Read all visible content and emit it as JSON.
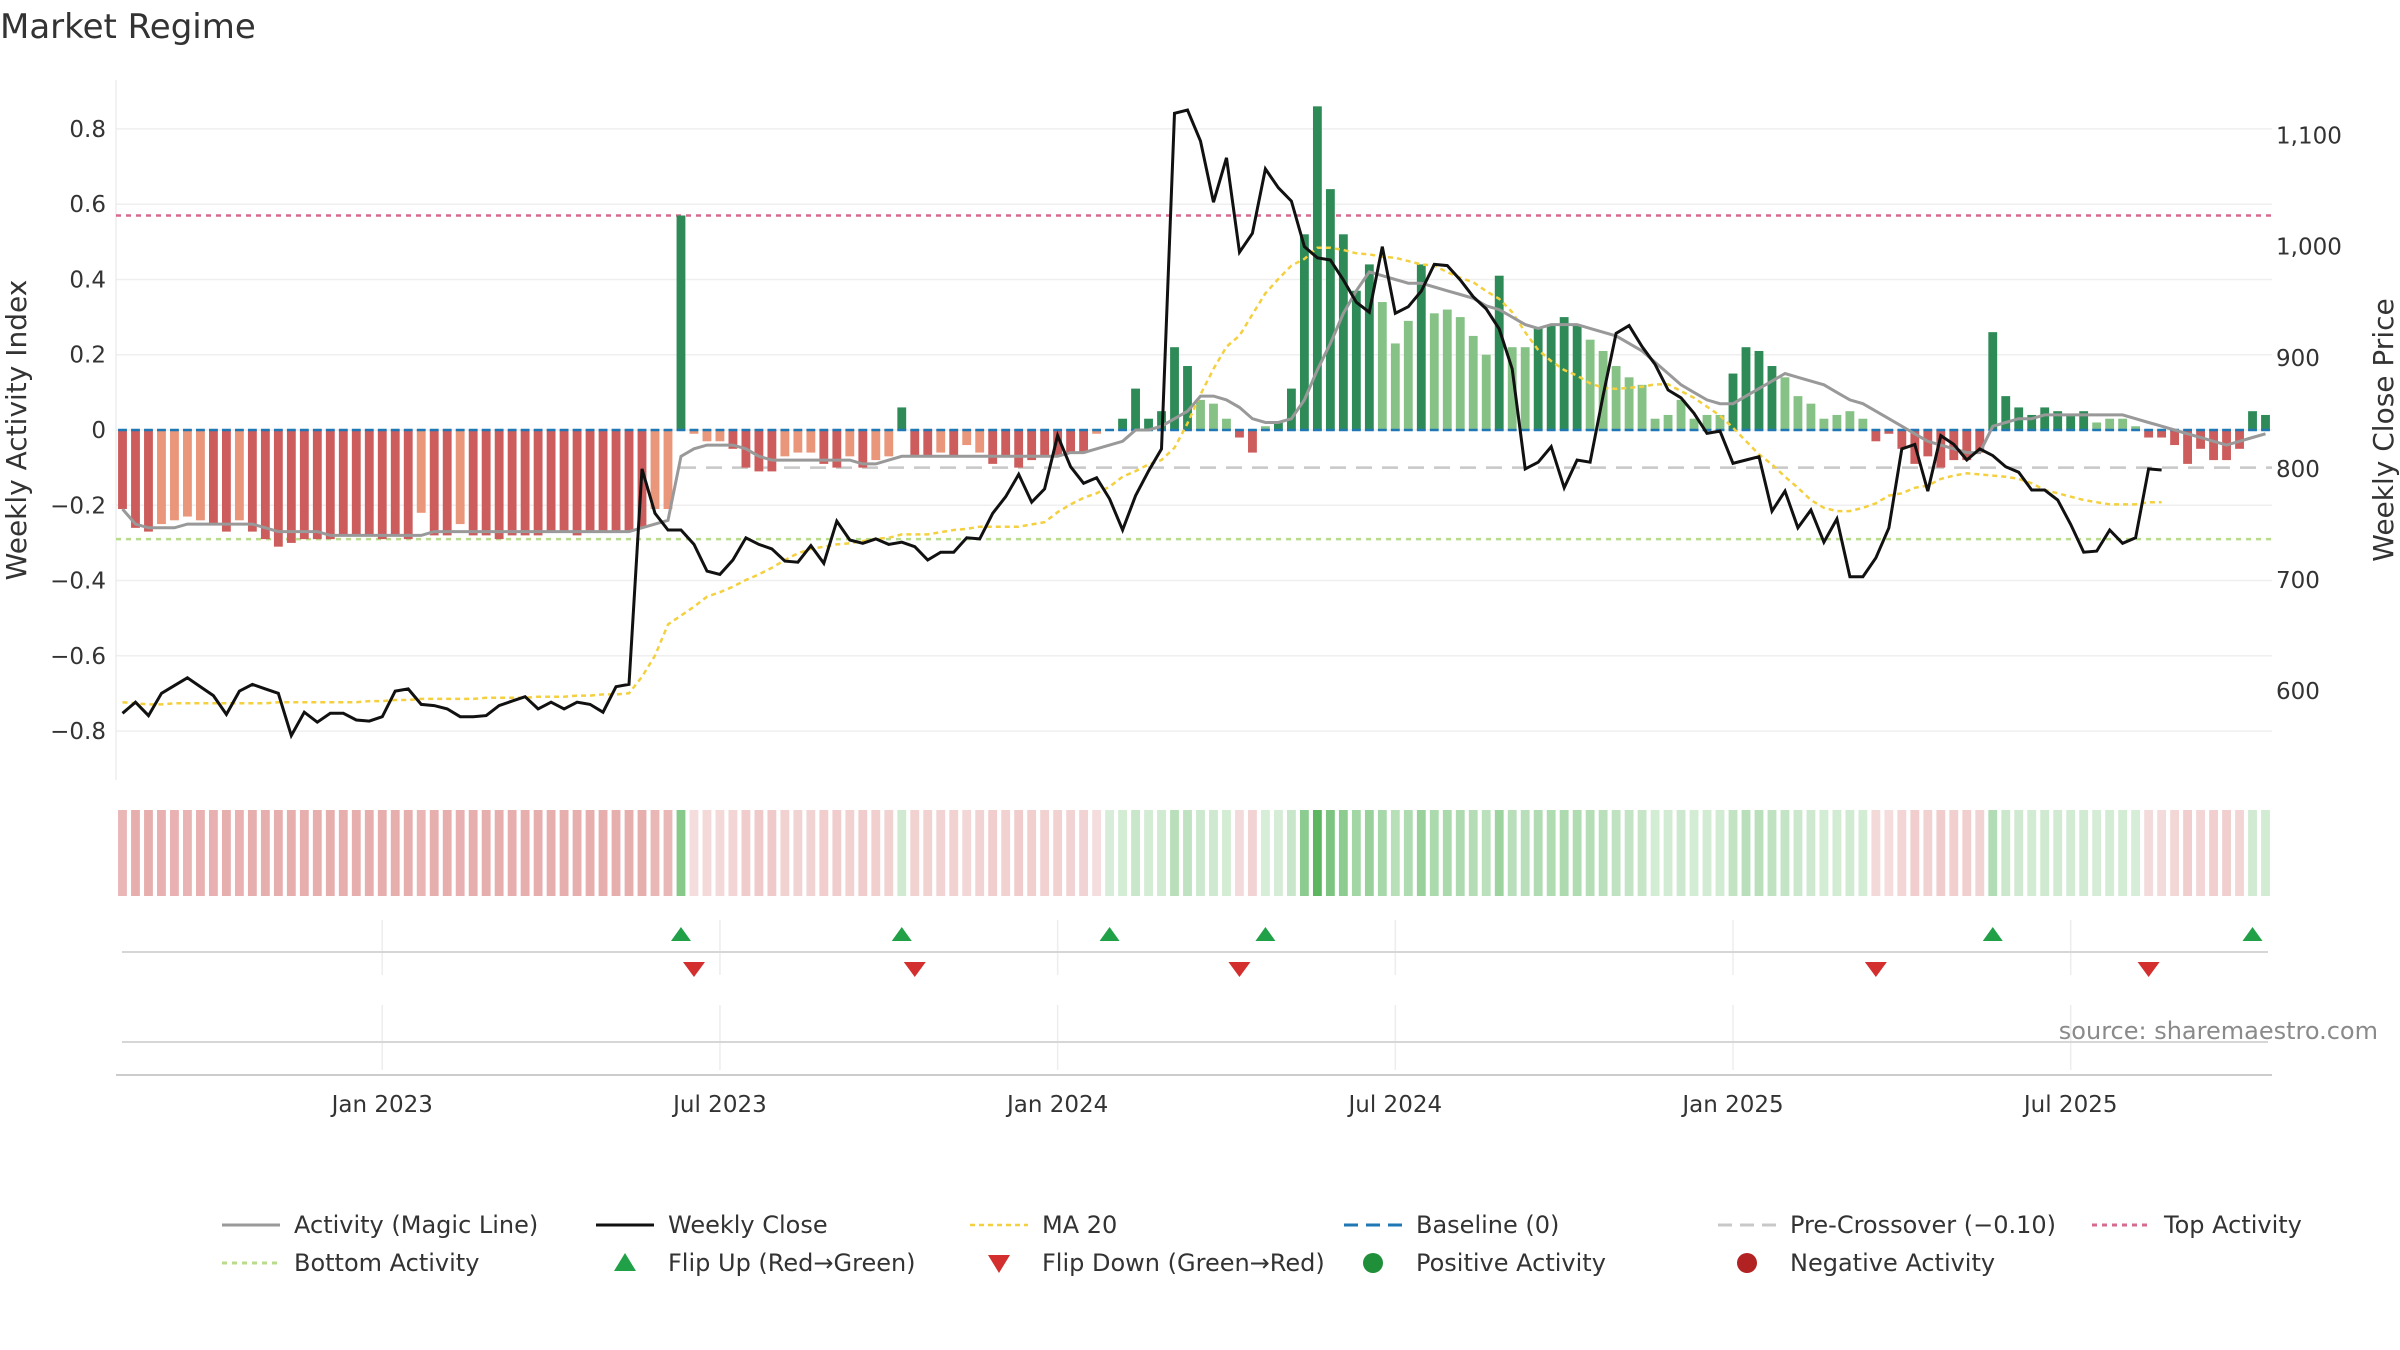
{
  "chart_data": {
    "type": "bar",
    "title": "Market Regime",
    "ylabel": "Weekly Activity Index",
    "y2label": "Weekly Close Price",
    "ylim": [
      -0.93,
      0.93
    ],
    "y2lim": [
      520,
      1150
    ],
    "yticks": [
      "0.8",
      "0.6",
      "0.4",
      "0.2",
      "0",
      "−0.2",
      "−0.4",
      "−0.6",
      "−0.8"
    ],
    "y2ticks": [
      "1,100",
      "1,000",
      "900",
      "800",
      "700",
      "600"
    ],
    "xticks": [
      "Jan 2023",
      "Jul 2023",
      "Jan 2024",
      "Jul 2024",
      "Jan 2025",
      "Jul 2025"
    ],
    "source": "source: sharemaestro.com",
    "reference_lines": {
      "top_activity": 0.57,
      "bottom_activity": -0.29,
      "pre_crossover": -0.1,
      "baseline": 0
    },
    "activity": [
      -0.21,
      -0.26,
      -0.27,
      -0.25,
      -0.24,
      -0.23,
      -0.24,
      -0.25,
      -0.27,
      -0.24,
      -0.27,
      -0.29,
      -0.31,
      -0.3,
      -0.29,
      -0.29,
      -0.29,
      -0.28,
      -0.28,
      -0.28,
      -0.29,
      -0.28,
      -0.29,
      -0.22,
      -0.28,
      -0.28,
      -0.25,
      -0.28,
      -0.28,
      -0.29,
      -0.28,
      -0.28,
      -0.28,
      -0.27,
      -0.27,
      -0.28,
      -0.27,
      -0.27,
      -0.27,
      -0.27,
      -0.26,
      -0.21,
      -0.21,
      0.57,
      -0.01,
      -0.03,
      -0.03,
      -0.05,
      -0.1,
      -0.11,
      -0.11,
      -0.07,
      -0.06,
      -0.06,
      -0.09,
      -0.1,
      -0.07,
      -0.1,
      -0.08,
      -0.07,
      0.06,
      -0.07,
      -0.07,
      -0.06,
      -0.07,
      -0.04,
      -0.06,
      -0.09,
      -0.07,
      -0.1,
      -0.08,
      -0.07,
      -0.07,
      -0.06,
      -0.06,
      -0.01,
      0.0,
      0.03,
      0.11,
      0.03,
      0.05,
      0.22,
      0.17,
      0.08,
      0.07,
      0.03,
      -0.02,
      -0.06,
      0.01,
      0.02,
      0.11,
      0.52,
      0.86,
      0.64,
      0.52,
      0.37,
      0.44,
      0.34,
      0.23,
      0.29,
      0.44,
      0.31,
      0.32,
      0.3,
      0.25,
      0.2,
      0.41,
      0.22,
      0.22,
      0.27,
      0.28,
      0.3,
      0.28,
      0.24,
      0.21,
      0.17,
      0.14,
      0.12,
      0.03,
      0.04,
      0.08,
      0.03,
      0.04,
      0.04,
      0.15,
      0.22,
      0.21,
      0.17,
      0.14,
      0.09,
      0.07,
      0.03,
      0.04,
      0.05,
      0.03,
      -0.03,
      -0.01,
      -0.05,
      -0.09,
      -0.07,
      -0.1,
      -0.08,
      -0.08,
      -0.06,
      0.26,
      0.09,
      0.06,
      0.04,
      0.06,
      0.05,
      0.04,
      0.05,
      0.02,
      0.03,
      0.03,
      0.01,
      -0.02,
      -0.02,
      -0.04,
      -0.09,
      -0.05,
      -0.08,
      -0.08,
      -0.05,
      0.05,
      0.04
    ],
    "magic_line": [
      -0.21,
      -0.25,
      -0.26,
      -0.26,
      -0.26,
      -0.25,
      -0.25,
      -0.25,
      -0.25,
      -0.25,
      -0.25,
      -0.26,
      -0.27,
      -0.27,
      -0.27,
      -0.27,
      -0.28,
      -0.28,
      -0.28,
      -0.28,
      -0.28,
      -0.28,
      -0.28,
      -0.28,
      -0.27,
      -0.27,
      -0.27,
      -0.27,
      -0.27,
      -0.27,
      -0.27,
      -0.27,
      -0.27,
      -0.27,
      -0.27,
      -0.27,
      -0.27,
      -0.27,
      -0.27,
      -0.27,
      -0.26,
      -0.25,
      -0.24,
      -0.07,
      -0.05,
      -0.04,
      -0.04,
      -0.04,
      -0.05,
      -0.07,
      -0.08,
      -0.08,
      -0.08,
      -0.08,
      -0.08,
      -0.08,
      -0.08,
      -0.09,
      -0.09,
      -0.08,
      -0.07,
      -0.07,
      -0.07,
      -0.07,
      -0.07,
      -0.07,
      -0.07,
      -0.07,
      -0.07,
      -0.07,
      -0.07,
      -0.07,
      -0.07,
      -0.06,
      -0.06,
      -0.05,
      -0.04,
      -0.03,
      0.0,
      0.0,
      0.01,
      0.03,
      0.05,
      0.09,
      0.09,
      0.08,
      0.06,
      0.03,
      0.02,
      0.02,
      0.03,
      0.08,
      0.16,
      0.23,
      0.31,
      0.37,
      0.42,
      0.41,
      0.4,
      0.39,
      0.39,
      0.38,
      0.37,
      0.36,
      0.35,
      0.33,
      0.32,
      0.3,
      0.28,
      0.27,
      0.28,
      0.28,
      0.28,
      0.27,
      0.26,
      0.25,
      0.23,
      0.21,
      0.18,
      0.15,
      0.12,
      0.1,
      0.08,
      0.07,
      0.07,
      0.09,
      0.11,
      0.13,
      0.15,
      0.14,
      0.13,
      0.12,
      0.1,
      0.08,
      0.07,
      0.05,
      0.03,
      0.01,
      -0.01,
      -0.03,
      -0.04,
      -0.05,
      -0.06,
      -0.06,
      0.01,
      0.02,
      0.03,
      0.03,
      0.04,
      0.04,
      0.04,
      0.04,
      0.04,
      0.04,
      0.04,
      0.03,
      0.02,
      0.01,
      0.0,
      -0.01,
      -0.02,
      -0.03,
      -0.04,
      -0.03,
      -0.02,
      -0.01
    ],
    "weekly_close": [
      580,
      590,
      578,
      598,
      605,
      612,
      604,
      596,
      579,
      600,
      606,
      602,
      598,
      560,
      581,
      572,
      580,
      580,
      574,
      573,
      577,
      600,
      602,
      588,
      587,
      584,
      577,
      577,
      578,
      587,
      591,
      595,
      584,
      590,
      584,
      590,
      588,
      581,
      604,
      606,
      800,
      760,
      745,
      745,
      732,
      708,
      705,
      718,
      738,
      732,
      728,
      717,
      716,
      731,
      715,
      753,
      736,
      733,
      737,
      732,
      734,
      730,
      718,
      725,
      725,
      738,
      737,
      760,
      775,
      795,
      770,
      782,
      830,
      802,
      787,
      792,
      773,
      745,
      776,
      798,
      818,
      1120,
      1123,
      1095,
      1040,
      1080,
      995,
      1012,
      1070,
      1053,
      1041,
      1000,
      990,
      988,
      970,
      950,
      941,
      1000,
      940,
      946,
      960,
      984,
      983,
      970,
      955,
      944,
      926,
      890,
      800,
      806,
      820,
      783,
      808,
      806,
      866,
      922,
      929,
      910,
      894,
      871,
      864,
      850,
      832,
      834,
      805,
      808,
      811,
      762,
      780,
      747,
      763,
      734,
      755,
      703,
      703,
      720,
      747,
      818,
      822,
      780,
      830,
      822,
      808,
      818,
      812,
      802,
      797,
      781,
      781,
      772,
      750,
      725,
      726,
      745,
      733,
      738,
      800,
      799
    ],
    "ma20": [
      590,
      589,
      588,
      588,
      589,
      589,
      589,
      589,
      589,
      589,
      589,
      589,
      590,
      590,
      590,
      590,
      590,
      590,
      590,
      591,
      591,
      592,
      592,
      593,
      593,
      593,
      593,
      593,
      594,
      594,
      594,
      594,
      595,
      595,
      595,
      596,
      596,
      597,
      597,
      598,
      613,
      632,
      660,
      668,
      676,
      685,
      689,
      694,
      700,
      705,
      711,
      718,
      724,
      728,
      730,
      732,
      733,
      735,
      737,
      738,
      741,
      741,
      741,
      743,
      745,
      746,
      748,
      748,
      748,
      748,
      750,
      752,
      761,
      768,
      774,
      778,
      784,
      793,
      798,
      804,
      808,
      819,
      841,
      867,
      890,
      910,
      920,
      939,
      958,
      971,
      983,
      989,
      999,
      999,
      997,
      994,
      993,
      991,
      990,
      987,
      984,
      983,
      977,
      972,
      968,
      960,
      953,
      941,
      923,
      907,
      897,
      889,
      884,
      877,
      873,
      872,
      873,
      874,
      876,
      876,
      870,
      864,
      856,
      848,
      837,
      825,
      813,
      804,
      793,
      783,
      772,
      765,
      762,
      762,
      765,
      769,
      776,
      778,
      783,
      785,
      791,
      794,
      796,
      795,
      794,
      793,
      791,
      787,
      781,
      778,
      775,
      772,
      770,
      768,
      768,
      768,
      770,
      770
    ]
  }
}
